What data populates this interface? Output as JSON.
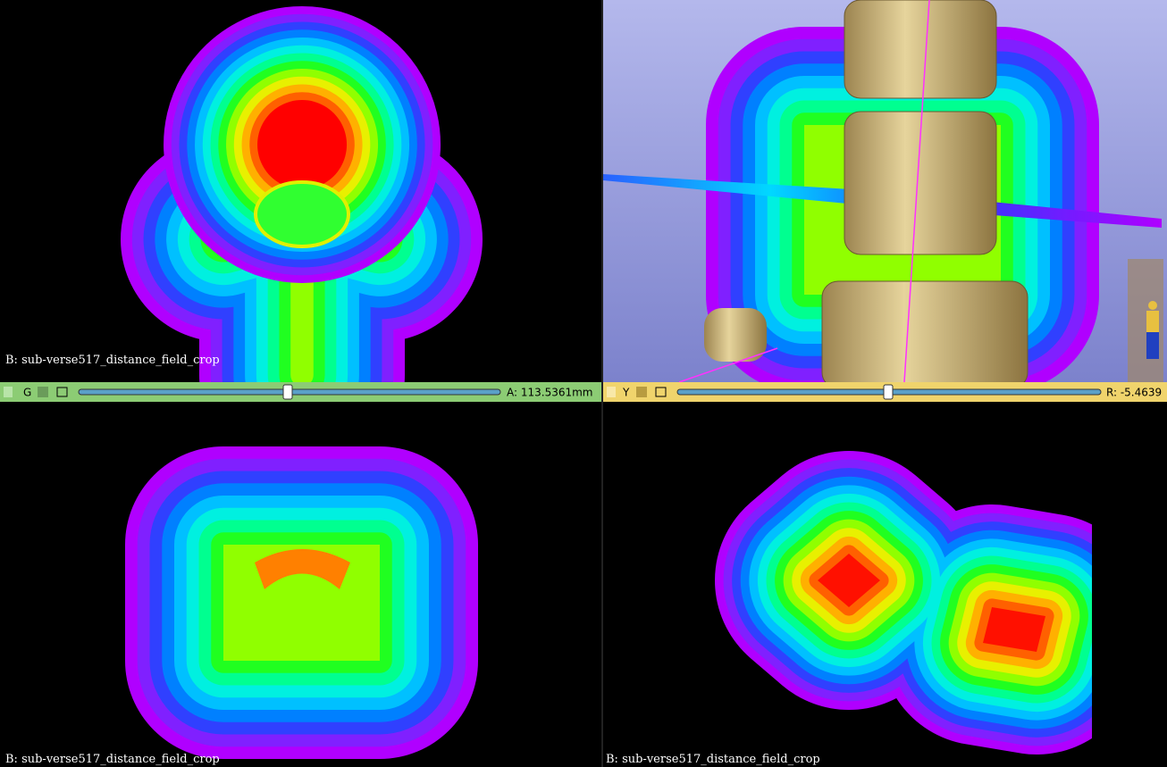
{
  "views": {
    "top_left": {
      "label": "B: sub-verse517_distance_field_crop"
    },
    "bottom_left": {
      "label": "B: sub-verse517_distance_field_crop"
    },
    "bottom_right": {
      "label": "B: sub-verse517_distance_field_crop"
    }
  },
  "sliders": [
    {
      "name": "G",
      "offset": "A: 113.5361mm"
    },
    {
      "name": "Y",
      "offset": "R: -5.4639"
    }
  ]
}
